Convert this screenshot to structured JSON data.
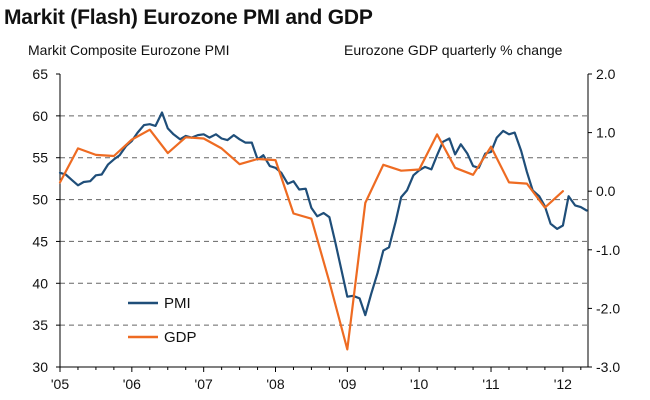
{
  "chart_data": {
    "type": "line",
    "title": "Markit (Flash) Eurozone PMI and GDP",
    "left_axis_label": "Markit Composite Eurozone PMI",
    "right_axis_label": "Eurozone GDP quarterly % change",
    "left_ylim": [
      30,
      65
    ],
    "left_yticks": [
      "65",
      "60",
      "55",
      "50",
      "45",
      "40",
      "35",
      "30"
    ],
    "right_ylim": [
      -3.0,
      2.0
    ],
    "right_yticks": [
      "2.0",
      "1.0",
      "0.0",
      "-1.0",
      "-2.0",
      "-3.0"
    ],
    "x_range": [
      2005,
      2012.35
    ],
    "x_ticks": [
      {
        "value": 2005,
        "label": "'05"
      },
      {
        "value": 2006,
        "label": "'06"
      },
      {
        "value": 2007,
        "label": "'07"
      },
      {
        "value": 2008,
        "label": "'08"
      },
      {
        "value": 2009,
        "label": "'09"
      },
      {
        "value": 2010,
        "label": "'10"
      },
      {
        "value": 2011,
        "label": "'11"
      },
      {
        "value": 2012,
        "label": "'12"
      }
    ],
    "grid": "horizontal dashed",
    "legend_position": "lower-left",
    "colors": {
      "pmi": "#1f4e79",
      "gdp": "#ee6b22"
    },
    "series": [
      {
        "name": "PMI",
        "axis": "left",
        "points": [
          [
            2005.0,
            53.2
          ],
          [
            2005.08,
            53.0
          ],
          [
            2005.17,
            52.3
          ],
          [
            2005.25,
            51.7
          ],
          [
            2005.33,
            52.1
          ],
          [
            2005.42,
            52.2
          ],
          [
            2005.5,
            52.9
          ],
          [
            2005.58,
            53.0
          ],
          [
            2005.67,
            54.2
          ],
          [
            2005.75,
            54.8
          ],
          [
            2005.83,
            55.3
          ],
          [
            2005.92,
            56.4
          ],
          [
            2006.0,
            57.0
          ],
          [
            2006.08,
            58.0
          ],
          [
            2006.17,
            58.9
          ],
          [
            2006.25,
            59.0
          ],
          [
            2006.33,
            58.8
          ],
          [
            2006.42,
            60.4
          ],
          [
            2006.5,
            58.5
          ],
          [
            2006.58,
            57.8
          ],
          [
            2006.67,
            57.2
          ],
          [
            2006.75,
            57.6
          ],
          [
            2006.83,
            57.4
          ],
          [
            2006.92,
            57.7
          ],
          [
            2007.0,
            57.8
          ],
          [
            2007.08,
            57.4
          ],
          [
            2007.17,
            57.8
          ],
          [
            2007.25,
            57.3
          ],
          [
            2007.33,
            57.1
          ],
          [
            2007.42,
            57.7
          ],
          [
            2007.5,
            57.2
          ],
          [
            2007.58,
            56.8
          ],
          [
            2007.67,
            56.8
          ],
          [
            2007.75,
            54.8
          ],
          [
            2007.83,
            55.3
          ],
          [
            2007.92,
            54.0
          ],
          [
            2008.0,
            53.8
          ],
          [
            2008.08,
            53.2
          ],
          [
            2008.17,
            51.9
          ],
          [
            2008.25,
            52.2
          ],
          [
            2008.33,
            51.2
          ],
          [
            2008.42,
            51.3
          ],
          [
            2008.5,
            49.0
          ],
          [
            2008.58,
            48.0
          ],
          [
            2008.67,
            48.4
          ],
          [
            2008.75,
            47.9
          ],
          [
            2008.83,
            45.0
          ],
          [
            2008.92,
            41.5
          ],
          [
            2009.0,
            38.4
          ],
          [
            2009.08,
            38.5
          ],
          [
            2009.17,
            38.2
          ],
          [
            2009.25,
            36.2
          ],
          [
            2009.33,
            38.7
          ],
          [
            2009.42,
            41.2
          ],
          [
            2009.5,
            43.9
          ],
          [
            2009.58,
            44.3
          ],
          [
            2009.67,
            47.3
          ],
          [
            2009.75,
            50.3
          ],
          [
            2009.83,
            51.1
          ],
          [
            2009.92,
            52.9
          ],
          [
            2010.0,
            53.5
          ],
          [
            2010.08,
            53.9
          ],
          [
            2010.17,
            53.6
          ],
          [
            2010.25,
            55.3
          ],
          [
            2010.33,
            56.9
          ],
          [
            2010.42,
            57.3
          ],
          [
            2010.5,
            55.4
          ],
          [
            2010.58,
            56.6
          ],
          [
            2010.67,
            55.5
          ],
          [
            2010.75,
            54.0
          ],
          [
            2010.83,
            53.8
          ],
          [
            2010.92,
            55.5
          ],
          [
            2011.0,
            55.7
          ],
          [
            2011.08,
            57.4
          ],
          [
            2011.17,
            58.2
          ],
          [
            2011.25,
            57.8
          ],
          [
            2011.33,
            58.0
          ],
          [
            2011.42,
            55.8
          ],
          [
            2011.5,
            53.3
          ],
          [
            2011.58,
            51.1
          ],
          [
            2011.67,
            50.4
          ],
          [
            2011.75,
            49.2
          ],
          [
            2011.83,
            47.1
          ],
          [
            2011.92,
            46.5
          ],
          [
            2012.0,
            46.9
          ],
          [
            2012.08,
            50.4
          ],
          [
            2012.17,
            49.3
          ],
          [
            2012.25,
            49.1
          ],
          [
            2012.33,
            48.7
          ]
        ]
      },
      {
        "name": "GDP",
        "axis": "right",
        "points": [
          [
            2005.0,
            0.15
          ],
          [
            2005.25,
            0.73
          ],
          [
            2005.5,
            0.62
          ],
          [
            2005.75,
            0.6
          ],
          [
            2006.0,
            0.88
          ],
          [
            2006.25,
            1.05
          ],
          [
            2006.5,
            0.65
          ],
          [
            2006.75,
            0.92
          ],
          [
            2007.0,
            0.9
          ],
          [
            2007.25,
            0.73
          ],
          [
            2007.5,
            0.46
          ],
          [
            2007.75,
            0.55
          ],
          [
            2008.0,
            0.53
          ],
          [
            2008.25,
            -0.38
          ],
          [
            2008.5,
            -0.47
          ],
          [
            2008.75,
            -1.55
          ],
          [
            2009.0,
            -2.7
          ],
          [
            2009.25,
            -0.2
          ],
          [
            2009.5,
            0.45
          ],
          [
            2009.75,
            0.35
          ],
          [
            2010.0,
            0.37
          ],
          [
            2010.25,
            0.97
          ],
          [
            2010.5,
            0.4
          ],
          [
            2010.75,
            0.28
          ],
          [
            2011.0,
            0.76
          ],
          [
            2011.25,
            0.15
          ],
          [
            2011.5,
            0.13
          ],
          [
            2011.75,
            -0.28
          ],
          [
            2012.0,
            0.0
          ]
        ]
      }
    ]
  }
}
